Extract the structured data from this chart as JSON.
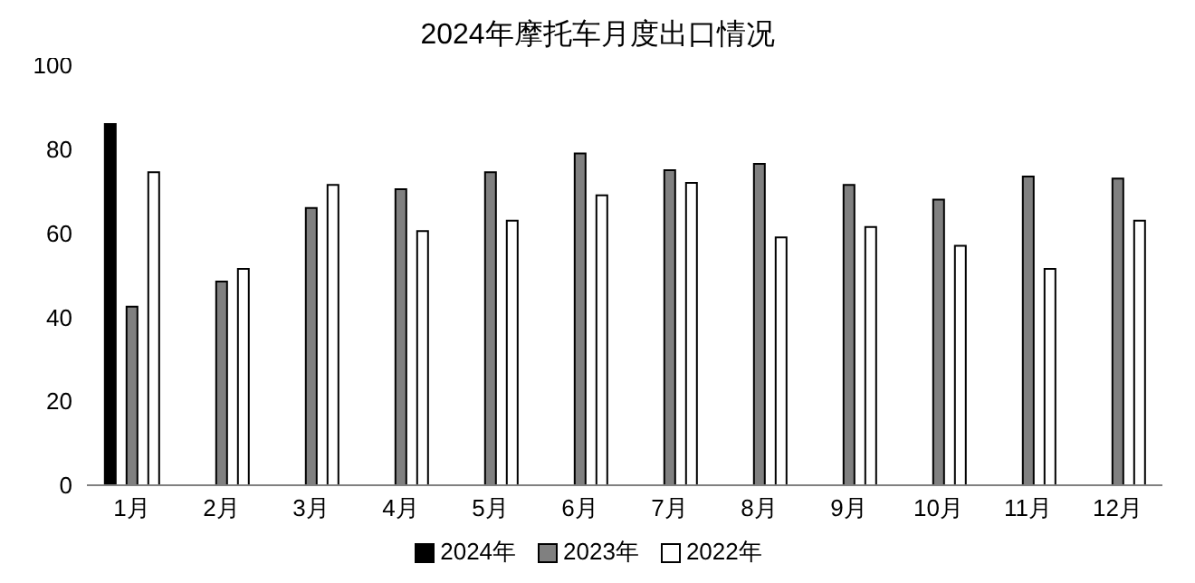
{
  "chart_data": {
    "type": "bar",
    "title": "2024年摩托车月度出口情况",
    "categories": [
      "1月",
      "2月",
      "3月",
      "4月",
      "5月",
      "6月",
      "7月",
      "8月",
      "9月",
      "10月",
      "11月",
      "12月"
    ],
    "series": [
      {
        "name": "2024年",
        "color": "#000000",
        "values": [
          86,
          null,
          null,
          null,
          null,
          null,
          null,
          null,
          null,
          null,
          null,
          null
        ]
      },
      {
        "name": "2023年",
        "color": "#808080",
        "values": [
          42.5,
          48.5,
          66,
          70.5,
          74.5,
          79,
          75,
          76.5,
          71.5,
          68,
          73.5,
          73
        ]
      },
      {
        "name": "2022年",
        "color": "#ffffff",
        "values": [
          74.5,
          51.5,
          71.5,
          60.5,
          63,
          69,
          72,
          59,
          61.5,
          57,
          51.5,
          63
        ]
      }
    ],
    "ylim": [
      0,
      100
    ],
    "yticks": [
      0,
      20,
      40,
      60,
      80,
      100
    ],
    "grid": false,
    "legend": "bottom"
  }
}
